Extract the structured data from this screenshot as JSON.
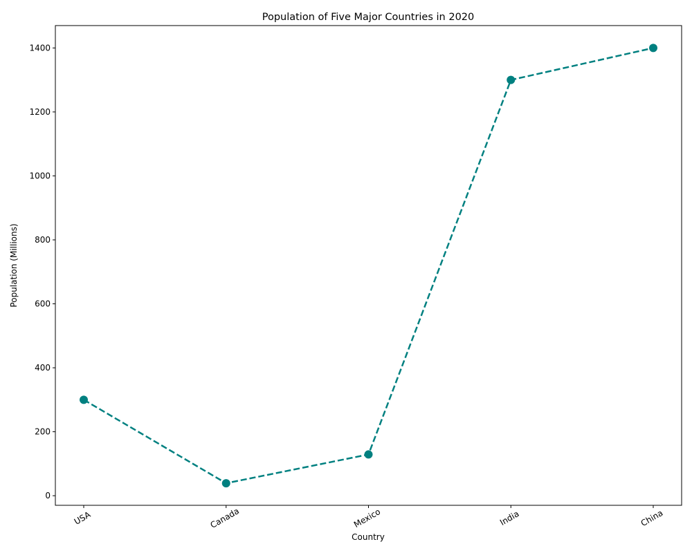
{
  "chart_data": {
    "type": "line",
    "title": "Population of Five Major Countries in 2020",
    "xlabel": "Country",
    "ylabel": "Population (Millions)",
    "categories": [
      "USA",
      "Canada",
      "Mexico",
      "India",
      "China"
    ],
    "series": [
      {
        "values": [
          300,
          39,
          129,
          1300,
          1400
        ]
      }
    ],
    "ylim": [
      -30,
      1470
    ],
    "yticks": [
      0,
      200,
      400,
      600,
      800,
      1000,
      1200,
      1400
    ],
    "ytick_labels": [
      "0",
      "200",
      "400",
      "600",
      "800",
      "1000",
      "1200",
      "1400"
    ],
    "grid": false,
    "line_style": "dashed",
    "marker": "circle",
    "color": "#008080"
  }
}
